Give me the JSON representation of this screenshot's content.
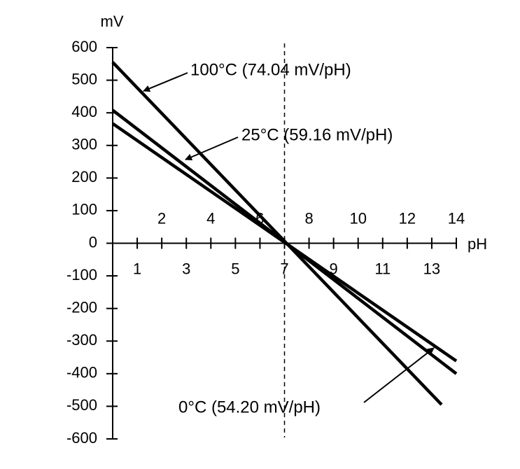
{
  "chart_data": {
    "type": "line",
    "xlabel": "pH",
    "ylabel": "mV",
    "xlim": [
      0,
      14
    ],
    "xticks": [
      1,
      2,
      3,
      4,
      5,
      6,
      7,
      8,
      9,
      10,
      11,
      12,
      13,
      14
    ],
    "ylim": [
      -600,
      600
    ],
    "yticks": [
      -600,
      -500,
      -400,
      -300,
      -200,
      -100,
      0,
      100,
      200,
      300,
      400,
      500,
      600
    ],
    "reference_x": 7,
    "series": [
      {
        "name": "100°C (74.04 mV/pH)",
        "color": "#000000",
        "x": [
          0,
          13.4
        ],
        "values": [
          555,
          -495
        ]
      },
      {
        "name": "25°C (59.16 mV/pH)",
        "color": "#000000",
        "x": [
          0,
          14
        ],
        "values": [
          408,
          -400
        ]
      },
      {
        "name": "0°C (54.20 mV/pH)",
        "color": "#000000",
        "x": [
          0,
          14
        ],
        "values": [
          367,
          -361
        ]
      }
    ]
  }
}
